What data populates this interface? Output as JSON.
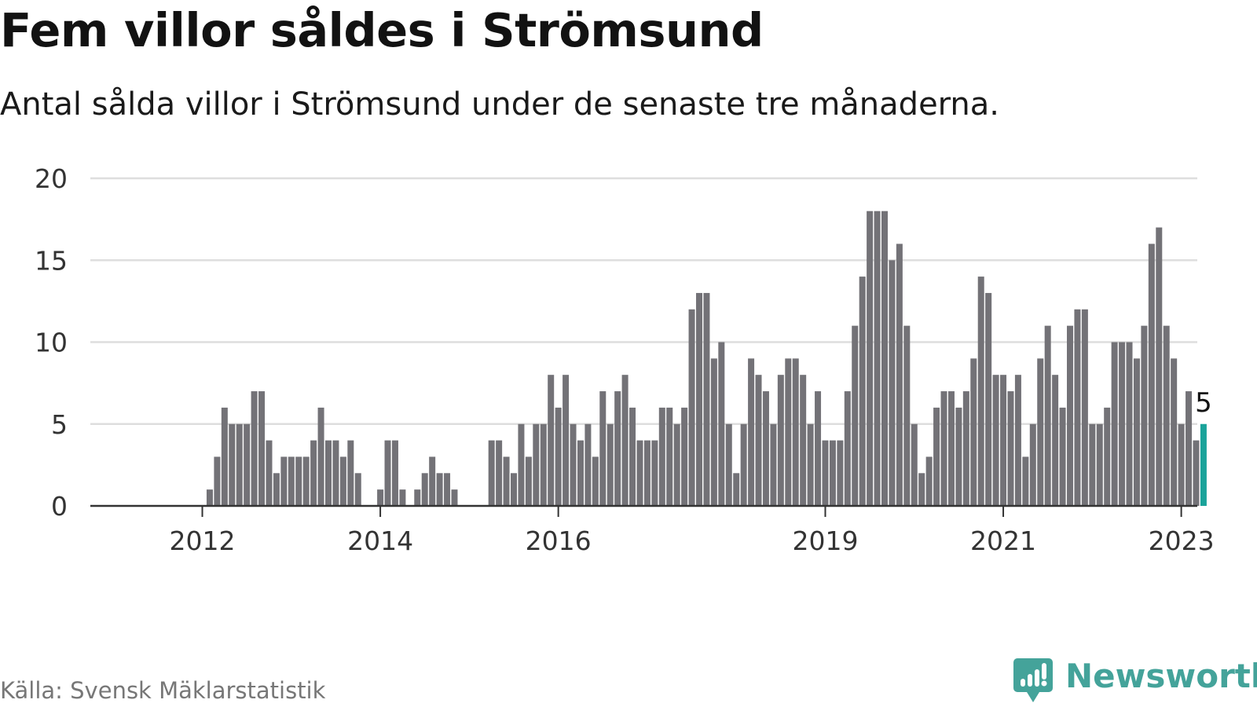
{
  "header": {
    "title": "Fem villor såldes i Strömsund",
    "subtitle": "Antal sålda villor i Strömsund under de senaste tre månaderna."
  },
  "footer": {
    "source": "Källa: Svensk Mäklarstatistik",
    "brand": "Newsworthy"
  },
  "colors": {
    "bar": "#737277",
    "highlight": "#1aa39a",
    "grid": "#dedede",
    "axis": "#333333",
    "brand": "#44a39a"
  },
  "chart_data": {
    "type": "bar",
    "x_start": "2011-05",
    "x_interval": "month",
    "values": [
      null,
      null,
      null,
      null,
      null,
      null,
      null,
      null,
      null,
      1,
      3,
      6,
      5,
      5,
      5,
      7,
      7,
      4,
      2,
      3,
      3,
      3,
      3,
      4,
      6,
      4,
      4,
      3,
      4,
      2,
      null,
      null,
      1,
      4,
      4,
      1,
      null,
      1,
      2,
      3,
      2,
      2,
      1,
      null,
      null,
      null,
      null,
      4,
      4,
      3,
      2,
      5,
      3,
      5,
      5,
      8,
      6,
      8,
      5,
      4,
      5,
      3,
      7,
      5,
      7,
      8,
      6,
      4,
      4,
      4,
      6,
      6,
      5,
      6,
      12,
      13,
      13,
      9,
      10,
      5,
      2,
      5,
      9,
      8,
      7,
      5,
      8,
      9,
      9,
      8,
      5,
      7,
      4,
      4,
      4,
      7,
      11,
      14,
      18,
      18,
      18,
      15,
      16,
      11,
      5,
      2,
      3,
      6,
      7,
      7,
      6,
      7,
      9,
      14,
      13,
      8,
      8,
      7,
      8,
      3,
      5,
      9,
      11,
      8,
      6,
      11,
      12,
      12,
      5,
      5,
      6,
      10,
      10,
      10,
      9,
      11,
      16,
      17,
      11,
      9,
      5,
      7,
      4,
      5
    ],
    "highlight_last": true,
    "highlight_label": "5",
    "ylim": [
      0,
      20
    ],
    "yticks": [
      0,
      5,
      10,
      15,
      20
    ],
    "xticks": [
      {
        "label": "2012",
        "index": 8
      },
      {
        "label": "2014",
        "index": 32
      },
      {
        "label": "2016",
        "index": 56
      },
      {
        "label": "2019",
        "index": 92
      },
      {
        "label": "2021",
        "index": 116
      },
      {
        "label": "2023",
        "index": 140
      }
    ],
    "grid": true,
    "legend": "none"
  }
}
